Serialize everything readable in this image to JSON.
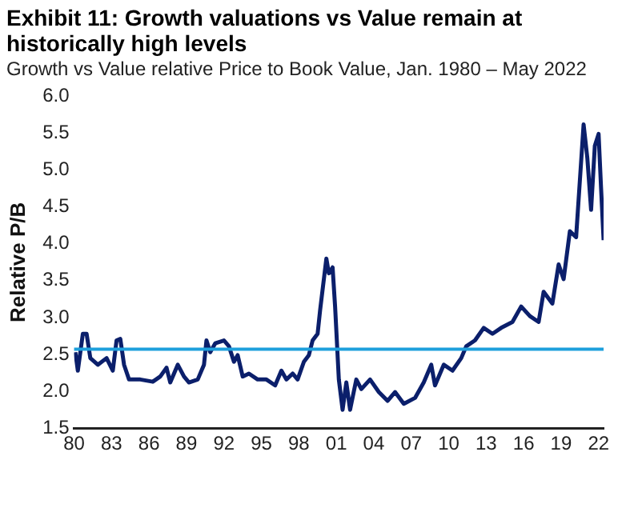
{
  "chart_data": {
    "type": "line",
    "title": "Exhibit 11: Growth valuations vs Value remain at historically high levels",
    "subtitle": "Growth vs Value relative Price to Book Value, Jan. 1980 – May 2022",
    "ylabel": "Relative P/B",
    "grid": false,
    "marker": "none",
    "xlim": [
      1980,
      2022.4
    ],
    "xticks": [
      {
        "value": 1980,
        "label": "80"
      },
      {
        "value": 1983,
        "label": "83"
      },
      {
        "value": 1986,
        "label": "86"
      },
      {
        "value": 1989,
        "label": "89"
      },
      {
        "value": 1992,
        "label": "92"
      },
      {
        "value": 1995,
        "label": "95"
      },
      {
        "value": 1998,
        "label": "98"
      },
      {
        "value": 2001,
        "label": "01"
      },
      {
        "value": 2004,
        "label": "04"
      },
      {
        "value": 2007,
        "label": "07"
      },
      {
        "value": 2010,
        "label": "10"
      },
      {
        "value": 2013,
        "label": "13"
      },
      {
        "value": 2016,
        "label": "16"
      },
      {
        "value": 2019,
        "label": "19"
      },
      {
        "value": 2022,
        "label": "22"
      }
    ],
    "ylim": [
      1.5,
      6
    ],
    "yticks": [
      {
        "value": 1.5,
        "label": "1.5"
      },
      {
        "value": 2,
        "label": "2.0"
      },
      {
        "value": 2.5,
        "label": "2.5"
      },
      {
        "value": 3,
        "label": "3.0"
      },
      {
        "value": 3.5,
        "label": "3.5"
      },
      {
        "value": 4,
        "label": "4.0"
      },
      {
        "value": 4.5,
        "label": "4.5"
      },
      {
        "value": 5,
        "label": "5.0"
      },
      {
        "value": 5.5,
        "label": "5.5"
      },
      {
        "value": 6,
        "label": "6.0"
      }
    ],
    "ref_lines": [
      {
        "axis": "y",
        "value": 2.57,
        "label": null,
        "color": "#1ea0dc"
      }
    ],
    "series": [
      {
        "color": "#0b1f6b",
        "x": [
          1980.1,
          1980.3,
          1980.7,
          1981.0,
          1981.3,
          1981.9,
          1982.6,
          1983.1,
          1983.4,
          1983.7,
          1984.0,
          1984.4,
          1985.3,
          1986.3,
          1986.9,
          1987.4,
          1987.7,
          1988.3,
          1988.8,
          1989.2,
          1989.9,
          1990.4,
          1990.6,
          1990.9,
          1991.3,
          1992.0,
          1992.4,
          1992.8,
          1993.1,
          1993.5,
          1994.0,
          1994.7,
          1995.4,
          1996.1,
          1996.6,
          1997.0,
          1997.5,
          1997.9,
          1998.4,
          1998.8,
          1999.1,
          1999.5,
          1999.7,
          2000.2,
          2000.4,
          2000.7,
          2000.9,
          2001.2,
          2001.5,
          2001.8,
          2002.1,
          2002.6,
          2003.0,
          2003.7,
          2004.4,
          2005.1,
          2005.7,
          2006.4,
          2007.3,
          2008.0,
          2008.6,
          2008.9,
          2009.6,
          2010.3,
          2011.0,
          2011.4,
          2012.1,
          2012.8,
          2013.5,
          2014.2,
          2015.1,
          2015.8,
          2016.5,
          2017.2,
          2017.6,
          2018.3,
          2018.8,
          2019.2,
          2019.7,
          2020.2,
          2020.8,
          2021.1,
          2021.4,
          2021.7,
          2022.0,
          2022.2,
          2022.4
        ],
        "values": [
          2.53,
          2.28,
          2.78,
          2.78,
          2.45,
          2.36,
          2.45,
          2.28,
          2.69,
          2.71,
          2.36,
          2.16,
          2.16,
          2.13,
          2.2,
          2.32,
          2.12,
          2.36,
          2.2,
          2.12,
          2.16,
          2.36,
          2.69,
          2.53,
          2.65,
          2.69,
          2.61,
          2.4,
          2.49,
          2.2,
          2.24,
          2.16,
          2.16,
          2.08,
          2.28,
          2.16,
          2.24,
          2.16,
          2.4,
          2.49,
          2.69,
          2.78,
          3.1,
          3.8,
          3.6,
          3.68,
          3.15,
          2.16,
          1.75,
          2.12,
          1.75,
          2.16,
          2.03,
          2.16,
          1.99,
          1.87,
          1.99,
          1.83,
          1.91,
          2.12,
          2.36,
          2.08,
          2.36,
          2.28,
          2.45,
          2.61,
          2.69,
          2.86,
          2.78,
          2.86,
          2.94,
          3.15,
          3.02,
          2.94,
          3.35,
          3.19,
          3.72,
          3.52,
          4.17,
          4.09,
          5.62,
          5.16,
          4.46,
          5.33,
          5.49,
          4.75,
          4.05
        ]
      }
    ]
  }
}
